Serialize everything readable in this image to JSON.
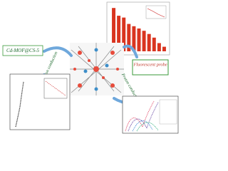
{
  "labels": {
    "material": "Cd-MOF@CS-5",
    "fluorescent": "Fluorescent probe",
    "proton_left": "Proton conduction",
    "proton_right": "Proton conduction"
  },
  "inset_bars": {
    "values": [
      0.95,
      0.78,
      0.74,
      0.6,
      0.55,
      0.5,
      0.45,
      0.38,
      0.3,
      0.18,
      0.1
    ],
    "ylim": [
      0,
      1
    ]
  }
}
